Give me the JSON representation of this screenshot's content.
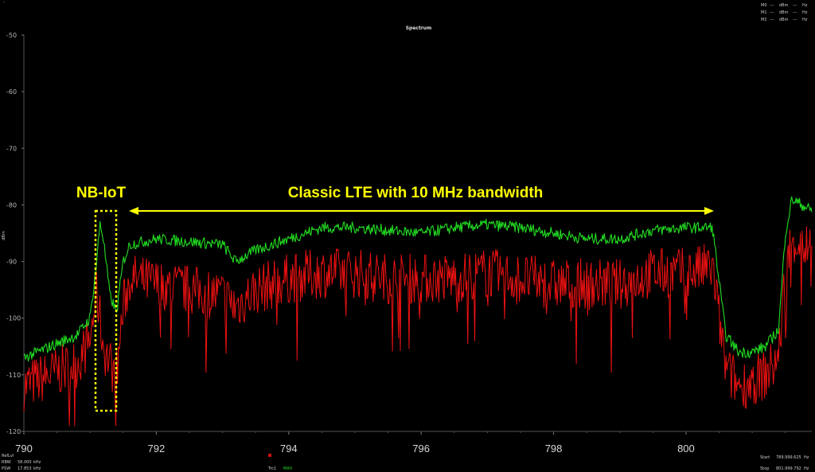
{
  "chart_data": {
    "type": "line",
    "title": "Spectrum",
    "ylabel": "dBm",
    "xlabel": "",
    "xlim": [
      790,
      801.9
    ],
    "ylim": [
      -120,
      -50
    ],
    "x_ticks": [
      "790",
      "792",
      "794",
      "796",
      "798",
      "800"
    ],
    "y_ticks": [
      "-50",
      "-60",
      "-70",
      "-80",
      "-90",
      "-100",
      "-110",
      "-120"
    ],
    "grid": false,
    "colors": {
      "max_trace": "#22dd22",
      "live_trace": "#ee1111",
      "annotation": "#ffff00"
    },
    "series": [
      {
        "name": "MAX",
        "color": "#22dd22",
        "x": [
          790.0,
          790.4,
          790.8,
          791.0,
          791.1,
          791.15,
          791.2,
          791.3,
          791.4,
          791.5,
          791.6,
          792.0,
          792.5,
          793.0,
          793.2,
          793.5,
          794.0,
          794.5,
          795.0,
          795.5,
          796.0,
          796.5,
          797.0,
          797.5,
          798.0,
          798.5,
          799.0,
          799.5,
          800.0,
          800.4,
          800.6,
          800.8,
          801.0,
          801.2,
          801.4,
          801.5,
          801.6,
          801.9
        ],
        "y": [
          -107,
          -105,
          -103,
          -100,
          -90,
          -83,
          -86,
          -96,
          -99,
          -90,
          -87,
          -86,
          -86.5,
          -87,
          -90,
          -88,
          -86,
          -84,
          -84,
          -84.5,
          -85,
          -84,
          -83.5,
          -84,
          -85,
          -86,
          -86,
          -84.5,
          -84,
          -84,
          -103,
          -106,
          -106,
          -105,
          -102,
          -85,
          -79,
          -81
        ]
      },
      {
        "name": "",
        "color": "#ee1111",
        "x": [
          790.0,
          790.4,
          790.8,
          791.0,
          791.1,
          791.15,
          791.2,
          791.3,
          791.4,
          791.5,
          791.6,
          792.0,
          792.5,
          793.0,
          793.2,
          793.5,
          794.0,
          794.5,
          795.0,
          795.5,
          796.0,
          796.5,
          797.0,
          797.5,
          798.0,
          798.5,
          799.0,
          799.5,
          800.0,
          800.4,
          800.6,
          800.8,
          801.0,
          801.2,
          801.4,
          801.5,
          801.6,
          801.9
        ],
        "y": [
          -112,
          -110,
          -108,
          -104,
          -95,
          -100,
          -105,
          -108,
          -110,
          -98,
          -93,
          -94,
          -95,
          -96,
          -98,
          -95,
          -93,
          -92,
          -92,
          -93,
          -93,
          -93,
          -92,
          -93,
          -94,
          -94,
          -94,
          -92,
          -92,
          -91,
          -109,
          -112,
          -111,
          -110,
          -107,
          -92,
          -86,
          -88
        ]
      }
    ],
    "annotations": [
      {
        "text": "NB-IoT",
        "x": 791.15,
        "y": -81.5
      },
      {
        "text": "Classic LTE with 10 MHz bandwidth",
        "x_from": 791.6,
        "x_to": 800.5,
        "y": -81
      }
    ]
  },
  "markers": {
    "rows": [
      {
        "name": "M0",
        "value": "---",
        "unit": "dBm",
        "freq": "---",
        "funit": "Hz"
      },
      {
        "name": "M1",
        "value": "---",
        "unit": "dBm",
        "freq": "---",
        "funit": "Hz"
      },
      {
        "name": "M2",
        "value": "---",
        "unit": "dBm",
        "freq": "---",
        "funit": "Hz"
      }
    ]
  },
  "footer": {
    "left": [
      {
        "label": "RefLvl",
        "value": "",
        "unit": ""
      },
      {
        "label": "RBW",
        "value": "58.000",
        "unit": "kHz"
      },
      {
        "label": "PSW",
        "value": "17.853",
        "unit": "kHz"
      }
    ],
    "trace_label": "Trc1",
    "trace_mode": "MAX",
    "right": [
      {
        "label": "Start",
        "value": "789.999.625",
        "unit": "Hz"
      },
      {
        "label": "Stop",
        "value": "801.999.792",
        "unit": "Hz"
      }
    ]
  }
}
